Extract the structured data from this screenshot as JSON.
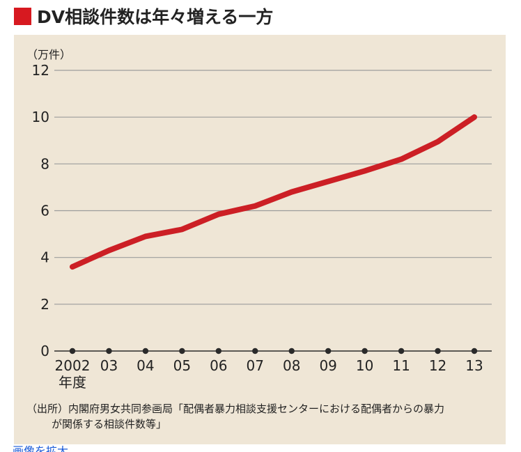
{
  "title": {
    "text": "DV相談件数は年々増える一方",
    "marker_color": "#d71920"
  },
  "colors": {
    "panel_bg": "#efe6d6",
    "line": "#cc1f25",
    "grid": "#9c9c9c",
    "axis": "#2a2a2a",
    "text": "#222222"
  },
  "source": {
    "line1": "（出所）内閣府男女共同参画局「配偶者暴力相談支援センターにおける配偶者からの暴力",
    "line2": "が関係する相談件数等」"
  },
  "bottom_link": {
    "text": "画像を拡大"
  },
  "chart_data": {
    "type": "line",
    "title": "DV相談件数は年々増える一方",
    "ylabel": "（万件）",
    "xlabel": "年度",
    "categories": [
      "2002",
      "03",
      "04",
      "05",
      "06",
      "07",
      "08",
      "09",
      "10",
      "11",
      "12",
      "13"
    ],
    "x_tick_labels": [
      "2002",
      "03",
      "04",
      "05",
      "06",
      "07",
      "08",
      "09",
      "10",
      "11",
      "12",
      "13"
    ],
    "x_first_sublabel": "年度",
    "y_ticks": [
      0,
      2,
      4,
      6,
      8,
      10,
      12
    ],
    "ylim": [
      0,
      12
    ],
    "grid": true,
    "series": [
      {
        "values": [
          3.6,
          4.3,
          4.9,
          5.2,
          5.85,
          6.2,
          6.8,
          7.25,
          7.7,
          8.2,
          8.95,
          10.0
        ]
      }
    ]
  }
}
